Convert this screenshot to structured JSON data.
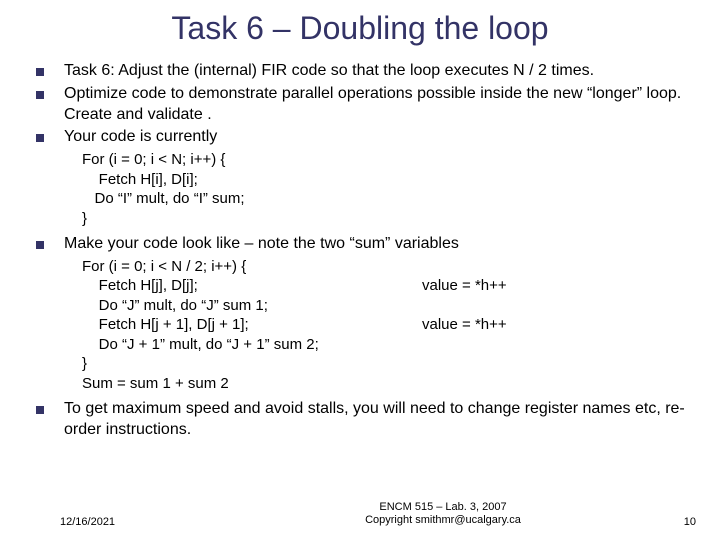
{
  "title": "Task 6 – Doubling the loop",
  "bullets": {
    "b1": "Task 6: Adjust the (internal) FIR code so that the loop executes N / 2 times.",
    "b2": "Optimize code to demonstrate parallel operations possible inside the new “longer” loop. Create and validate .",
    "b3": "Your code is currently",
    "b4": "Make your code look like – note the two “sum” variables",
    "b5": "To get maximum speed and avoid stalls, you will need to change register names etc, re-order instructions."
  },
  "code1": {
    "l1": "For (i = 0; i < N; i++) {",
    "l2": "    Fetch H[i], D[i];",
    "l3": "   Do “I” mult, do “I” sum;",
    "l4": "}"
  },
  "code2": {
    "l1": "For (i = 0; i < N / 2; i++) {",
    "l2_left": "    Fetch H[j], D[j];",
    "l2_right": "value = *h++",
    "l3": "    Do “J” mult, do “J” sum 1;",
    "l4_left": "    Fetch H[j + 1], D[j + 1];",
    "l4_right": "value = *h++",
    "l5": "    Do “J + 1” mult, do “J + 1” sum 2;",
    "l6": "}",
    "l7": "Sum = sum 1 + sum 2"
  },
  "footer": {
    "date": "12/16/2021",
    "line1": "ENCM 515 – Lab. 3, 2007",
    "line2": "Copyright smithmr@ucalgary.ca",
    "page": "10"
  },
  "colors": {
    "title_color": "#333366",
    "bullet_color": "#333366",
    "text_color": "#000000",
    "background": "#ffffff"
  },
  "fonts": {
    "title_size_pt": 32,
    "body_size_pt": 16,
    "code_size_pt": 15,
    "footer_size_pt": 11,
    "family": "Verdana"
  }
}
